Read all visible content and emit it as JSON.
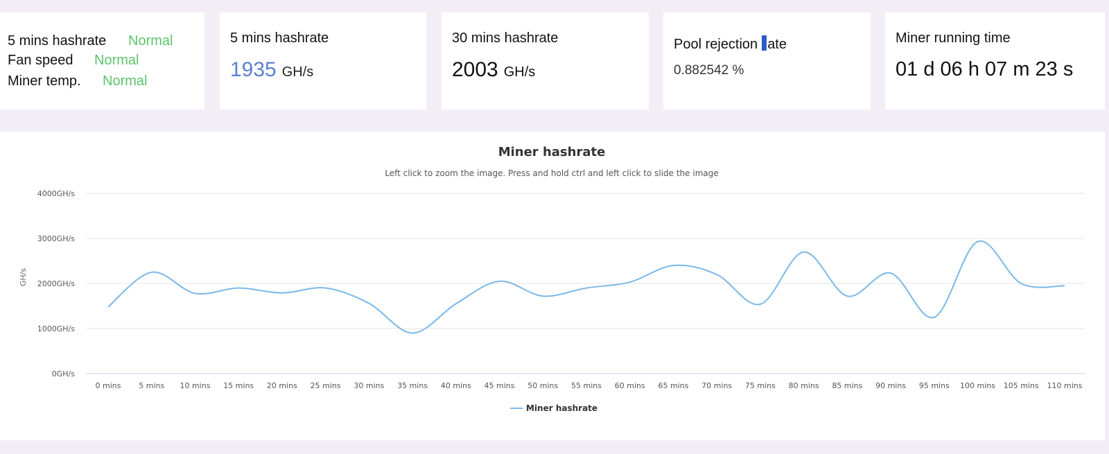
{
  "status_card": {
    "rows": [
      {
        "label": "5 mins hashrate",
        "value": "Normal"
      },
      {
        "label": "Fan speed",
        "value": "Normal"
      },
      {
        "label": "Miner temp.",
        "value": "Normal"
      }
    ]
  },
  "hashrate_5min": {
    "title": "5 mins hashrate",
    "value": "1935",
    "unit": "GH/s"
  },
  "hashrate_30min": {
    "title": "30 mins hashrate",
    "value": "2003",
    "unit": "GH/s"
  },
  "pool_rejection": {
    "title_before_cursor": "Pool rejection",
    "title_after_cursor": "ate",
    "value": "0.882542 %"
  },
  "running_time": {
    "title": "Miner running time",
    "value": "01 d 06 h 07 m 23 s"
  },
  "colors": {
    "accent_blue": "#5a7fd0",
    "status_green": "#5cc46a",
    "series_line": "#7ab8e8"
  },
  "chart_data": {
    "type": "line",
    "title": "Miner hashrate",
    "subtitle": "Left click to zoom the image. Press and hold ctrl and left click to slide the image",
    "ylabel": "GH/s",
    "xlabel": "",
    "ylim": [
      0,
      4000
    ],
    "yticks": [
      "0GH/s",
      "1000GH/s",
      "2000GH/s",
      "3000GH/s",
      "4000GH/s"
    ],
    "categories": [
      "0 mins",
      "5 mins",
      "10 mins",
      "15 mins",
      "20 mins",
      "25 mins",
      "30 mins",
      "35 mins",
      "40 mins",
      "45 mins",
      "50 mins",
      "55 mins",
      "60 mins",
      "65 mins",
      "70 mins",
      "75 mins",
      "80 mins",
      "85 mins",
      "90 mins",
      "95 mins",
      "100 mins",
      "105 mins",
      "110 mins"
    ],
    "series": [
      {
        "name": "Miner hashrate",
        "values": [
          1480,
          2250,
          1780,
          1900,
          1790,
          1900,
          1560,
          900,
          1550,
          2050,
          1720,
          1900,
          2030,
          2400,
          2200,
          1540,
          2700,
          1720,
          2230,
          1250,
          2930,
          2000,
          1950
        ]
      }
    ],
    "legend": "bottom-center",
    "grid": true
  }
}
